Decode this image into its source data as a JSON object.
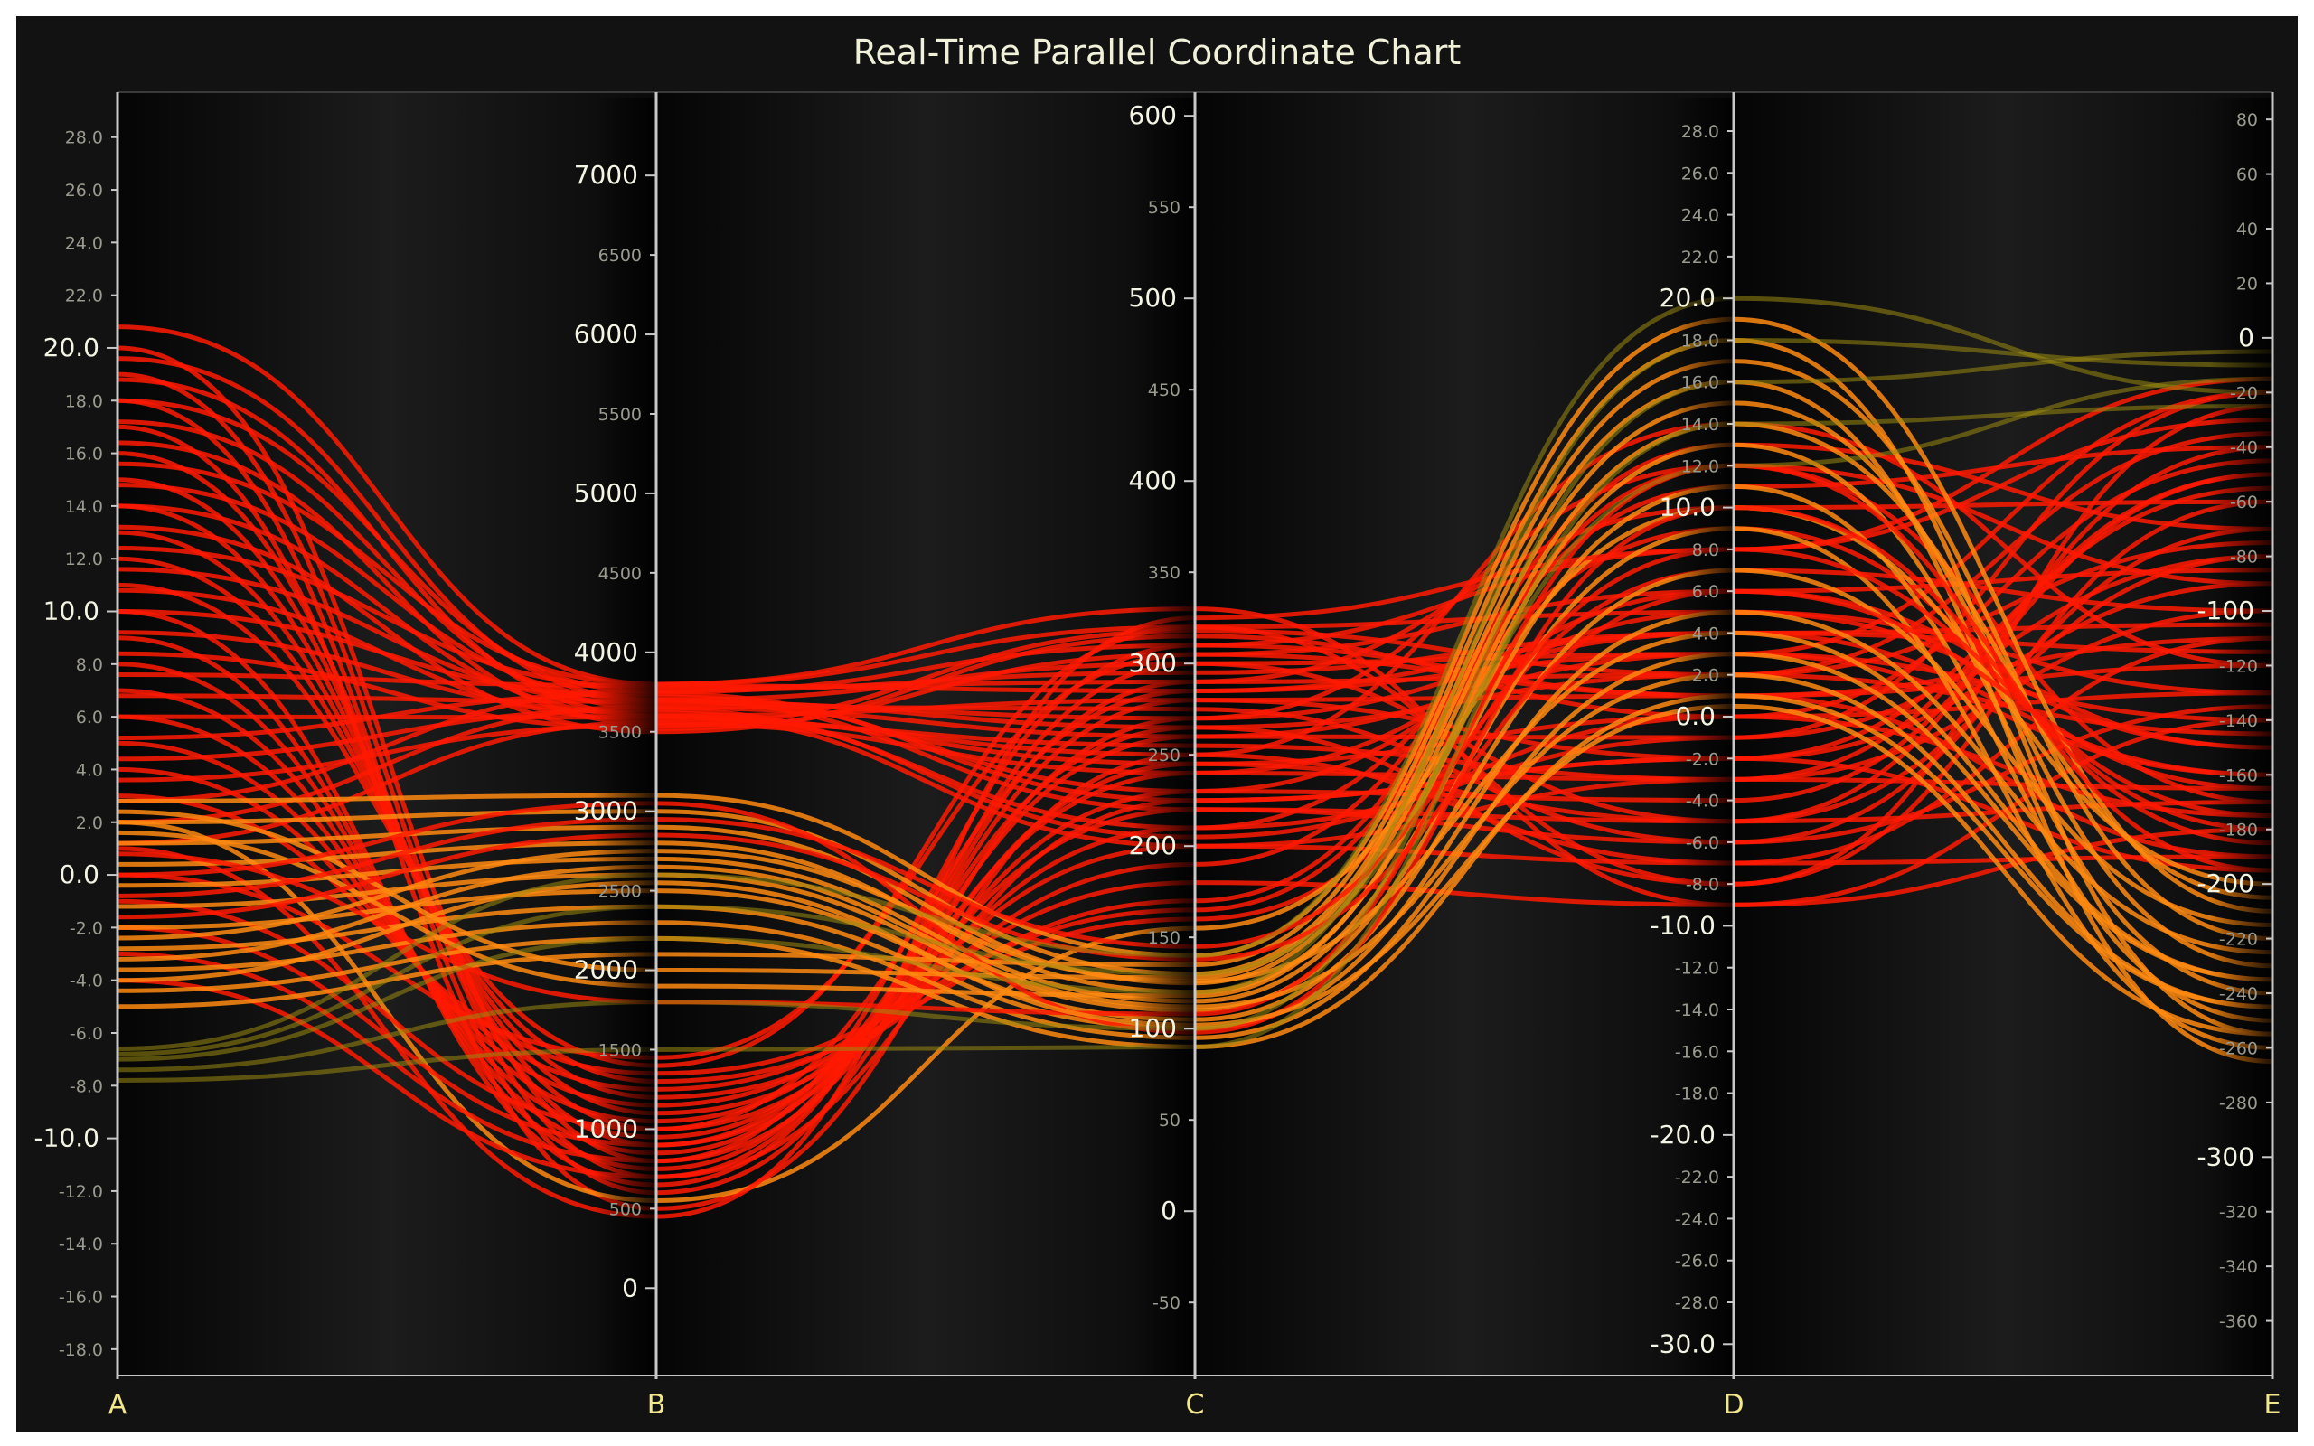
{
  "title": "Real-Time Parallel Coordinate Chart",
  "colors": {
    "background": "#121212",
    "axis": "#c8c8c8",
    "major_tick_text": "#f4f4e4",
    "minor_tick_text": "#9a9a8e",
    "axis_name": "#f2e88a",
    "line_red": "#ff1a00",
    "line_orange": "#ff8a10",
    "line_olive": "#9a8a10"
  },
  "chart_data": {
    "type": "parallel-coordinates",
    "title": "Real-Time Parallel Coordinate Chart",
    "axes": [
      {
        "name": "A",
        "range": [
          -19,
          29.5
        ],
        "ticks": [
          {
            "value": 28,
            "label": "28.0",
            "major": false
          },
          {
            "value": 26,
            "label": "26.0",
            "major": false
          },
          {
            "value": 24,
            "label": "24.0",
            "major": false
          },
          {
            "value": 22,
            "label": "22.0",
            "major": false
          },
          {
            "value": 20,
            "label": "20.0",
            "major": true
          },
          {
            "value": 18,
            "label": "18.0",
            "major": false
          },
          {
            "value": 16,
            "label": "16.0",
            "major": false
          },
          {
            "value": 14,
            "label": "14.0",
            "major": false
          },
          {
            "value": 12,
            "label": "12.0",
            "major": false
          },
          {
            "value": 10,
            "label": "10.0",
            "major": true
          },
          {
            "value": 8,
            "label": "8.0",
            "major": false
          },
          {
            "value": 6,
            "label": "6.0",
            "major": false
          },
          {
            "value": 4,
            "label": "4.0",
            "major": false
          },
          {
            "value": 2,
            "label": "2.0",
            "major": false
          },
          {
            "value": 0,
            "label": "0.0",
            "major": true
          },
          {
            "value": -2,
            "label": "-2.0",
            "major": false
          },
          {
            "value": -4,
            "label": "-4.0",
            "major": false
          },
          {
            "value": -6,
            "label": "-6.0",
            "major": false
          },
          {
            "value": -8,
            "label": "-8.0",
            "major": false
          },
          {
            "value": -10,
            "label": "-10.0",
            "major": true
          },
          {
            "value": -12,
            "label": "-12.0",
            "major": false
          },
          {
            "value": -14,
            "label": "-14.0",
            "major": false
          },
          {
            "value": -16,
            "label": "-16.0",
            "major": false
          },
          {
            "value": -18,
            "label": "-18.0",
            "major": false
          }
        ]
      },
      {
        "name": "B",
        "range": [
          -550,
          7490
        ],
        "ticks": [
          {
            "value": 7000,
            "label": "7000",
            "major": true
          },
          {
            "value": 6500,
            "label": "6500",
            "major": false
          },
          {
            "value": 6000,
            "label": "6000",
            "major": true
          },
          {
            "value": 5500,
            "label": "5500",
            "major": false
          },
          {
            "value": 5000,
            "label": "5000",
            "major": true
          },
          {
            "value": 4500,
            "label": "4500",
            "major": false
          },
          {
            "value": 4000,
            "label": "4000",
            "major": true
          },
          {
            "value": 3500,
            "label": "3500",
            "major": false
          },
          {
            "value": 3000,
            "label": "3000",
            "major": true
          },
          {
            "value": 2500,
            "label": "2500",
            "major": false
          },
          {
            "value": 2000,
            "label": "2000",
            "major": true
          },
          {
            "value": 1500,
            "label": "1500",
            "major": false
          },
          {
            "value": 1000,
            "label": "1000",
            "major": true
          },
          {
            "value": 500,
            "label": "500",
            "major": false
          },
          {
            "value": 0,
            "label": "0",
            "major": true
          }
        ]
      },
      {
        "name": "C",
        "range": [
          -90,
          610
        ],
        "ticks": [
          {
            "value": 600,
            "label": "600",
            "major": true
          },
          {
            "value": 550,
            "label": "550",
            "major": false
          },
          {
            "value": 500,
            "label": "500",
            "major": true
          },
          {
            "value": 450,
            "label": "450",
            "major": false
          },
          {
            "value": 400,
            "label": "400",
            "major": true
          },
          {
            "value": 350,
            "label": "350",
            "major": false
          },
          {
            "value": 300,
            "label": "300",
            "major": true
          },
          {
            "value": 250,
            "label": "250",
            "major": false
          },
          {
            "value": 200,
            "label": "200",
            "major": true
          },
          {
            "value": 150,
            "label": "150",
            "major": false
          },
          {
            "value": 100,
            "label": "100",
            "major": true
          },
          {
            "value": 50,
            "label": "50",
            "major": false
          },
          {
            "value": 0,
            "label": "0",
            "major": true
          },
          {
            "value": -50,
            "label": "-50",
            "major": false
          }
        ]
      },
      {
        "name": "D",
        "range": [
          -31.5,
          29.6
        ],
        "ticks": [
          {
            "value": 28,
            "label": "28.0",
            "major": false
          },
          {
            "value": 26,
            "label": "26.0",
            "major": false
          },
          {
            "value": 24,
            "label": "24.0",
            "major": false
          },
          {
            "value": 22,
            "label": "22.0",
            "major": false
          },
          {
            "value": 20,
            "label": "20.0",
            "major": true
          },
          {
            "value": 18,
            "label": "18.0",
            "major": false
          },
          {
            "value": 16,
            "label": "16.0",
            "major": false
          },
          {
            "value": 14,
            "label": "14.0",
            "major": false
          },
          {
            "value": 12,
            "label": "12.0",
            "major": false
          },
          {
            "value": 10,
            "label": "10.0",
            "major": true
          },
          {
            "value": 8,
            "label": "8.0",
            "major": false
          },
          {
            "value": 6,
            "label": "6.0",
            "major": false
          },
          {
            "value": 4,
            "label": "4.0",
            "major": false
          },
          {
            "value": 2,
            "label": "2.0",
            "major": false
          },
          {
            "value": 0,
            "label": "0.0",
            "major": true
          },
          {
            "value": -2,
            "label": "-2.0",
            "major": false
          },
          {
            "value": -4,
            "label": "-4.0",
            "major": false
          },
          {
            "value": -6,
            "label": "-6.0",
            "major": false
          },
          {
            "value": -8,
            "label": "-8.0",
            "major": false
          },
          {
            "value": -10,
            "label": "-10.0",
            "major": true
          },
          {
            "value": -12,
            "label": "-12.0",
            "major": false
          },
          {
            "value": -14,
            "label": "-14.0",
            "major": false
          },
          {
            "value": -16,
            "label": "-16.0",
            "major": false
          },
          {
            "value": -18,
            "label": "-18.0",
            "major": false
          },
          {
            "value": -20,
            "label": "-20.0",
            "major": true
          },
          {
            "value": -22,
            "label": "-22.0",
            "major": false
          },
          {
            "value": -24,
            "label": "-24.0",
            "major": false
          },
          {
            "value": -26,
            "label": "-26.0",
            "major": false
          },
          {
            "value": -28,
            "label": "-28.0",
            "major": false
          },
          {
            "value": -30,
            "label": "-30.0",
            "major": true
          }
        ]
      },
      {
        "name": "E",
        "range": [
          -380,
          88
        ],
        "ticks": [
          {
            "value": 80,
            "label": "80",
            "major": false
          },
          {
            "value": 60,
            "label": "60",
            "major": false
          },
          {
            "value": 40,
            "label": "40",
            "major": false
          },
          {
            "value": 20,
            "label": "20",
            "major": false
          },
          {
            "value": 0,
            "label": "0",
            "major": true
          },
          {
            "value": -20,
            "label": "-20",
            "major": false
          },
          {
            "value": -40,
            "label": "-40",
            "major": false
          },
          {
            "value": -60,
            "label": "-60",
            "major": false
          },
          {
            "value": -80,
            "label": "-80",
            "major": false
          },
          {
            "value": -100,
            "label": "-100",
            "major": true
          },
          {
            "value": -120,
            "label": "-120",
            "major": false
          },
          {
            "value": -140,
            "label": "-140",
            "major": false
          },
          {
            "value": -160,
            "label": "-160",
            "major": false
          },
          {
            "value": -180,
            "label": "-180",
            "major": false
          },
          {
            "value": -200,
            "label": "-200",
            "major": true
          },
          {
            "value": -220,
            "label": "-220",
            "major": false
          },
          {
            "value": -240,
            "label": "-240",
            "major": false
          },
          {
            "value": -260,
            "label": "-260",
            "major": false
          },
          {
            "value": -280,
            "label": "-280",
            "major": false
          },
          {
            "value": -300,
            "label": "-300",
            "major": true
          },
          {
            "value": -320,
            "label": "-320",
            "major": false
          },
          {
            "value": -340,
            "label": "-340",
            "major": false
          },
          {
            "value": -360,
            "label": "-360",
            "major": false
          }
        ]
      }
    ],
    "series": [
      {
        "color": "red",
        "ranges": [
          [
            -5,
            21
          ],
          [
            3500,
            3800
          ],
          [
            140,
            320
          ],
          [
            -10,
            0
          ],
          [
            -200,
            -10
          ]
        ]
      },
      {
        "color": "red",
        "ranges": [
          [
            -5,
            21
          ],
          [
            400,
            1500
          ],
          [
            150,
            330
          ],
          [
            -10,
            14
          ],
          [
            -200,
            -10
          ]
        ]
      },
      {
        "color": "orange",
        "ranges": [
          [
            -5,
            3
          ],
          [
            1800,
            3100
          ],
          [
            90,
            150
          ],
          [
            0,
            20
          ],
          [
            -270,
            -160
          ]
        ]
      },
      {
        "color": "olive",
        "ranges": [
          [
            -8,
            -6
          ],
          [
            1400,
            2700
          ],
          [
            80,
            150
          ],
          [
            0,
            20
          ],
          [
            -30,
            0
          ]
        ]
      }
    ],
    "records": [
      [
        20.8,
        3800,
        320,
        -8,
        -60
      ],
      [
        19.6,
        3700,
        300,
        -5,
        -40
      ],
      [
        18.8,
        3600,
        280,
        -2,
        -90
      ],
      [
        18.0,
        3750,
        310,
        1,
        -120
      ],
      [
        17.2,
        3650,
        260,
        3,
        -20
      ],
      [
        16.4,
        3550,
        240,
        5,
        -150
      ],
      [
        15.6,
        3800,
        330,
        -9,
        -180
      ],
      [
        14.8,
        3700,
        220,
        -6,
        -70
      ],
      [
        14.0,
        3600,
        200,
        -3,
        -100
      ],
      [
        13.2,
        3500,
        315,
        0,
        -130
      ],
      [
        12.4,
        3780,
        290,
        2,
        -35
      ],
      [
        11.6,
        3680,
        270,
        4,
        -160
      ],
      [
        10.8,
        3580,
        250,
        -7,
        -190
      ],
      [
        10.0,
        3720,
        230,
        -4,
        -50
      ],
      [
        9.2,
        3620,
        210,
        -1,
        -80
      ],
      [
        8.4,
        3520,
        305,
        1,
        -110
      ],
      [
        7.6,
        3790,
        285,
        3,
        -140
      ],
      [
        6.8,
        3690,
        265,
        -8,
        -25
      ],
      [
        6.0,
        3590,
        245,
        -5,
        -170
      ],
      [
        5.2,
        3740,
        225,
        -2,
        -195
      ],
      [
        4.4,
        3640,
        205,
        0,
        -45
      ],
      [
        3.6,
        3540,
        318,
        2,
        -75
      ],
      [
        2.8,
        3760,
        295,
        4,
        -105
      ],
      [
        2.0,
        3660,
        275,
        -6,
        -135
      ],
      [
        1.2,
        3560,
        255,
        -3,
        -165
      ],
      [
        20.0,
        800,
        310,
        8,
        -30
      ],
      [
        19.0,
        700,
        290,
        10,
        -60
      ],
      [
        18.0,
        600,
        270,
        12,
        -90
      ],
      [
        17.0,
        500,
        250,
        14,
        -120
      ],
      [
        16.0,
        900,
        230,
        6,
        -150
      ],
      [
        15.0,
        1000,
        210,
        9,
        -180
      ],
      [
        14.0,
        1100,
        190,
        11,
        -40
      ],
      [
        13.0,
        1200,
        170,
        13,
        -70
      ],
      [
        12.0,
        1300,
        160,
        7,
        -100
      ],
      [
        11.0,
        1400,
        320,
        5,
        -130
      ],
      [
        10.0,
        650,
        300,
        3,
        -160
      ],
      [
        9.0,
        750,
        280,
        1,
        -190
      ],
      [
        8.0,
        850,
        260,
        -1,
        -20
      ],
      [
        7.0,
        950,
        240,
        -3,
        -50
      ],
      [
        6.0,
        1050,
        220,
        -5,
        -80
      ],
      [
        5.0,
        1150,
        200,
        -7,
        -110
      ],
      [
        4.0,
        1250,
        180,
        -9,
        -140
      ],
      [
        3.0,
        1350,
        165,
        12,
        -170
      ],
      [
        2.0,
        550,
        155,
        10,
        -200
      ],
      [
        1.0,
        450,
        325,
        8,
        -15
      ],
      [
        0.0,
        1450,
        305,
        6,
        -85
      ],
      [
        -1.0,
        1000,
        285,
        4,
        -115
      ],
      [
        -2.0,
        900,
        265,
        2,
        -145
      ],
      [
        -3.0,
        800,
        245,
        0,
        -175
      ],
      [
        -4.0,
        700,
        225,
        -2,
        -55
      ],
      [
        2.8,
        3100,
        140,
        19,
        -210
      ],
      [
        2.0,
        3000,
        130,
        17,
        -220
      ],
      [
        1.2,
        2900,
        125,
        15,
        -230
      ],
      [
        0.4,
        2800,
        120,
        13,
        -240
      ],
      [
        -0.4,
        2700,
        115,
        11,
        -250
      ],
      [
        -1.2,
        2600,
        110,
        9,
        -260
      ],
      [
        -2.0,
        2500,
        105,
        7,
        -215
      ],
      [
        -2.8,
        2400,
        100,
        5,
        -225
      ],
      [
        -3.6,
        2300,
        95,
        3,
        -235
      ],
      [
        -4.4,
        2200,
        90,
        1,
        -245
      ],
      [
        -5.0,
        2100,
        135,
        18,
        -255
      ],
      [
        2.4,
        2000,
        128,
        16,
        -265
      ],
      [
        1.6,
        1900,
        118,
        14,
        -205
      ],
      [
        0.8,
        1800,
        108,
        12,
        -195
      ],
      [
        0.0,
        3050,
        98,
        10,
        -185
      ],
      [
        -0.8,
        2950,
        145,
        8,
        -175
      ],
      [
        -1.6,
        2850,
        138,
        6,
        -165
      ],
      [
        -2.4,
        2750,
        126,
        4,
        -235
      ],
      [
        -3.2,
        2650,
        112,
        2,
        -245
      ],
      [
        -4.0,
        2550,
        102,
        0.5,
        -255
      ],
      [
        -6.6,
        2600,
        140,
        20,
        -20
      ],
      [
        -7.0,
        2200,
        120,
        18,
        -10
      ],
      [
        -7.4,
        1800,
        100,
        16,
        -5
      ],
      [
        -7.8,
        1500,
        90,
        14,
        -25
      ],
      [
        -6.8,
        2400,
        130,
        12,
        -15
      ]
    ]
  }
}
